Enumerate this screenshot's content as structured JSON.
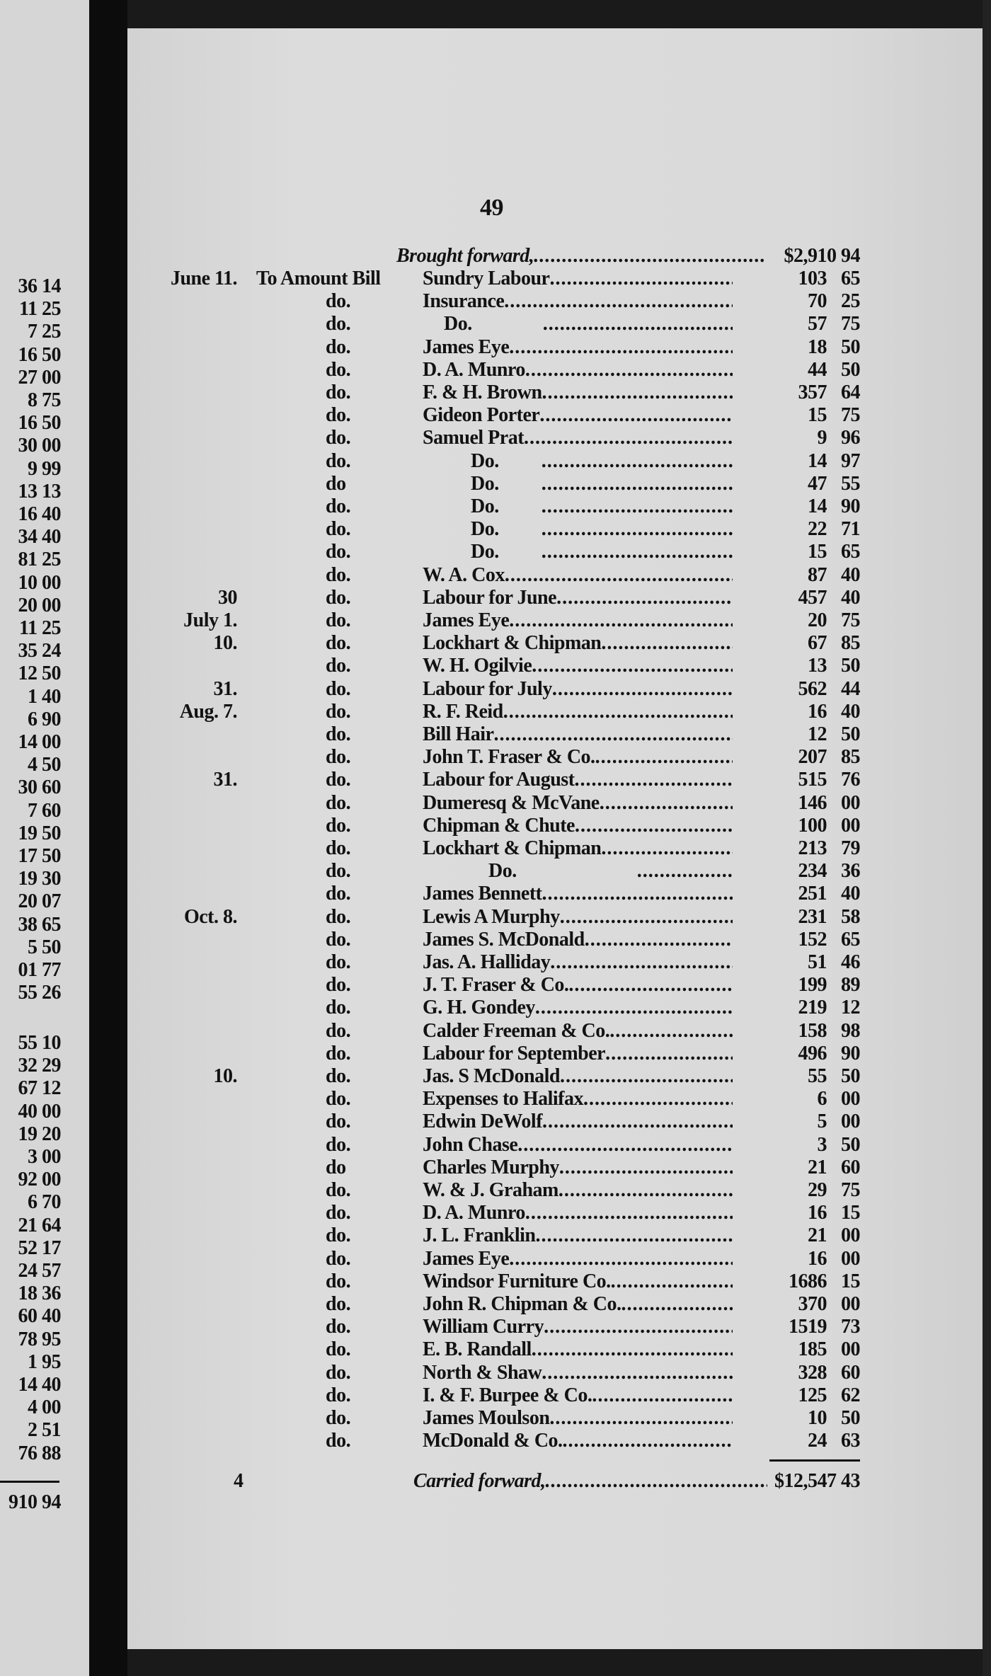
{
  "page_number": "49",
  "footer_signature": "4",
  "brought_forward": {
    "label": "Brought forward,",
    "amount": "$2,910 94"
  },
  "carried_forward": {
    "label": "Carried forward,",
    "amount": "$12,547 43"
  },
  "entries": [
    {
      "date": "June 11.",
      "ref": "To Amount Bill",
      "name": "Sundry Labour",
      "indent": 0,
      "dollars": "103",
      "cents": "65"
    },
    {
      "date": "",
      "ref": "do.",
      "name": "Insurance",
      "indent": 0,
      "dollars": "70",
      "cents": "25"
    },
    {
      "date": "",
      "ref": "do.",
      "name": "Do.",
      "indent": 1,
      "dollars": "57",
      "cents": "75"
    },
    {
      "date": "",
      "ref": "do.",
      "name": "James Eye",
      "indent": 0,
      "dollars": "18",
      "cents": "50"
    },
    {
      "date": "",
      "ref": "do.",
      "name": "D. A. Munro",
      "indent": 0,
      "dollars": "44",
      "cents": "50"
    },
    {
      "date": "",
      "ref": "do.",
      "name": "F. & H. Brown",
      "indent": 0,
      "dollars": "357",
      "cents": "64"
    },
    {
      "date": "",
      "ref": "do.",
      "name": "Gideon Porter",
      "indent": 0,
      "dollars": "15",
      "cents": "75"
    },
    {
      "date": "",
      "ref": "do.",
      "name": "Samuel Prat",
      "indent": 0,
      "dollars": "9",
      "cents": "96"
    },
    {
      "date": "",
      "ref": "do.",
      "name": "Do.",
      "indent": 2,
      "dollars": "14",
      "cents": "97"
    },
    {
      "date": "",
      "ref": "do",
      "name": "Do.",
      "indent": 2,
      "dollars": "47",
      "cents": "55"
    },
    {
      "date": "",
      "ref": "do.",
      "name": "Do.",
      "indent": 2,
      "dollars": "14",
      "cents": "90"
    },
    {
      "date": "",
      "ref": "do.",
      "name": "Do.",
      "indent": 2,
      "dollars": "22",
      "cents": "71"
    },
    {
      "date": "",
      "ref": "do.",
      "name": "Do.",
      "indent": 2,
      "dollars": "15",
      "cents": "65"
    },
    {
      "date": "",
      "ref": "do.",
      "name": "W. A. Cox",
      "indent": 0,
      "dollars": "87",
      "cents": "40"
    },
    {
      "date": "30",
      "ref": "do.",
      "name": "Labour for June",
      "indent": 0,
      "dollars": "457",
      "cents": "40"
    },
    {
      "date": "July 1.",
      "ref": "do.",
      "name": "James Eye",
      "indent": 0,
      "dollars": "20",
      "cents": "75"
    },
    {
      "date": "10.",
      "ref": "do.",
      "name": "Lockhart & Chipman",
      "indent": 0,
      "dollars": "67",
      "cents": "85"
    },
    {
      "date": "",
      "ref": "do.",
      "name": "W. H. Ogilvie",
      "indent": 0,
      "dollars": "13",
      "cents": "50"
    },
    {
      "date": "31.",
      "ref": "do.",
      "name": "Labour for July",
      "indent": 0,
      "dollars": "562",
      "cents": "44"
    },
    {
      "date": "Aug. 7.",
      "ref": "do.",
      "name": "R. F. Reid",
      "indent": 0,
      "dollars": "16",
      "cents": "40"
    },
    {
      "date": "",
      "ref": "do.",
      "name": "Bill Hair",
      "indent": 0,
      "dollars": "12",
      "cents": "50"
    },
    {
      "date": "",
      "ref": "do.",
      "name": "John T. Fraser & Co.",
      "indent": 0,
      "dollars": "207",
      "cents": "85"
    },
    {
      "date": "31.",
      "ref": "do.",
      "name": "Labour for August",
      "indent": 0,
      "dollars": "515",
      "cents": "76"
    },
    {
      "date": "",
      "ref": "do.",
      "name": "Dumeresq & McVane",
      "indent": 0,
      "dollars": "146",
      "cents": "00"
    },
    {
      "date": "",
      "ref": "do.",
      "name": "Chipman & Chute",
      "indent": 0,
      "dollars": "100",
      "cents": "00"
    },
    {
      "date": "",
      "ref": "do.",
      "name": "Lockhart & Chipman",
      "indent": 0,
      "dollars": "213",
      "cents": "79"
    },
    {
      "date": "",
      "ref": "do.",
      "name": "Do.",
      "indent": 3,
      "dollars": "234",
      "cents": "36"
    },
    {
      "date": "",
      "ref": "do.",
      "name": "James Bennett",
      "indent": 0,
      "dollars": "251",
      "cents": "40"
    },
    {
      "date": "Oct. 8.",
      "ref": "do.",
      "name": "Lewis A Murphy",
      "indent": 0,
      "dollars": "231",
      "cents": "58"
    },
    {
      "date": "",
      "ref": "do.",
      "name": "James S. McDonald",
      "indent": 0,
      "dollars": "152",
      "cents": "65"
    },
    {
      "date": "",
      "ref": "do.",
      "name": "Jas. A. Halliday",
      "indent": 0,
      "dollars": "51",
      "cents": "46"
    },
    {
      "date": "",
      "ref": "do.",
      "name": "J. T. Fraser & Co.",
      "indent": 0,
      "dollars": "199",
      "cents": "89"
    },
    {
      "date": "",
      "ref": "do.",
      "name": "G. H. Gondey",
      "indent": 0,
      "dollars": "219",
      "cents": "12"
    },
    {
      "date": "",
      "ref": "do.",
      "name": "Calder Freeman & Co.",
      "indent": 0,
      "dollars": "158",
      "cents": "98"
    },
    {
      "date": "",
      "ref": "do.",
      "name": "Labour for September",
      "indent": 0,
      "dollars": "496",
      "cents": "90"
    },
    {
      "date": "10.",
      "ref": "do.",
      "name": "Jas. S McDonald",
      "indent": 0,
      "dollars": "55",
      "cents": "50"
    },
    {
      "date": "",
      "ref": "do.",
      "name": "Expenses to Halifax",
      "indent": 0,
      "dollars": "6",
      "cents": "00"
    },
    {
      "date": "",
      "ref": "do.",
      "name": "Edwin DeWolf",
      "indent": 0,
      "dollars": "5",
      "cents": "00"
    },
    {
      "date": "",
      "ref": "do.",
      "name": "John Chase",
      "indent": 0,
      "dollars": "3",
      "cents": "50"
    },
    {
      "date": "",
      "ref": "do",
      "name": "Charles Murphy",
      "indent": 0,
      "dollars": "21",
      "cents": "60"
    },
    {
      "date": "",
      "ref": "do.",
      "name": "W. & J. Graham",
      "indent": 0,
      "dollars": "29",
      "cents": "75"
    },
    {
      "date": "",
      "ref": "do.",
      "name": "D. A. Munro",
      "indent": 0,
      "dollars": "16",
      "cents": "15"
    },
    {
      "date": "",
      "ref": "do.",
      "name": "J. L. Franklin",
      "indent": 0,
      "dollars": "21",
      "cents": "00"
    },
    {
      "date": "",
      "ref": "do.",
      "name": "James Eye",
      "indent": 0,
      "dollars": "16",
      "cents": "00"
    },
    {
      "date": "",
      "ref": "do.",
      "name": "Windsor Furniture Co.",
      "indent": 0,
      "dollars": "1686",
      "cents": "15"
    },
    {
      "date": "",
      "ref": "do.",
      "name": "John R. Chipman & Co.",
      "indent": 0,
      "dollars": "370",
      "cents": "00"
    },
    {
      "date": "",
      "ref": "do.",
      "name": "William Curry",
      "indent": 0,
      "dollars": "1519",
      "cents": "73"
    },
    {
      "date": "",
      "ref": "do.",
      "name": "E. B. Randall",
      "indent": 0,
      "dollars": "185",
      "cents": "00"
    },
    {
      "date": "",
      "ref": "do.",
      "name": "North & Shaw",
      "indent": 0,
      "dollars": "328",
      "cents": "60"
    },
    {
      "date": "",
      "ref": "do.",
      "name": "I. & F. Burpee & Co.",
      "indent": 0,
      "dollars": "125",
      "cents": "62"
    },
    {
      "date": "",
      "ref": "do.",
      "name": "James Moulson",
      "indent": 0,
      "dollars": "10",
      "cents": "50"
    },
    {
      "date": "",
      "ref": "do.",
      "name": "McDonald & Co.",
      "indent": 0,
      "dollars": "24",
      "cents": "63"
    }
  ],
  "left_page": {
    "column_a": [
      "36 14",
      "11 25",
      "7 25",
      "16 50",
      "27 00",
      "8 75",
      "16 50",
      "30 00",
      "9 99",
      "13 13",
      "16 40",
      "34 40",
      "81 25",
      "10 00",
      "20 00",
      "11 25",
      "35 24",
      "12 50",
      "1 40",
      "6 90",
      "14 00",
      "4 50",
      "30 60",
      "7 60",
      "19 50",
      "17 50",
      "19 30",
      "20 07",
      "38 65",
      "5 50",
      "01 77",
      "55 26"
    ],
    "column_b": [
      "55 10",
      "32 29",
      "67 12",
      "40 00",
      "19 20",
      "3 00",
      "92 00",
      "6 70",
      "21 64",
      "52 17",
      "24 57",
      "18 36",
      "60 40",
      "78 95",
      "1 95",
      "14 40",
      "4 00",
      "2 51",
      "76 88"
    ],
    "total": "910 94"
  }
}
